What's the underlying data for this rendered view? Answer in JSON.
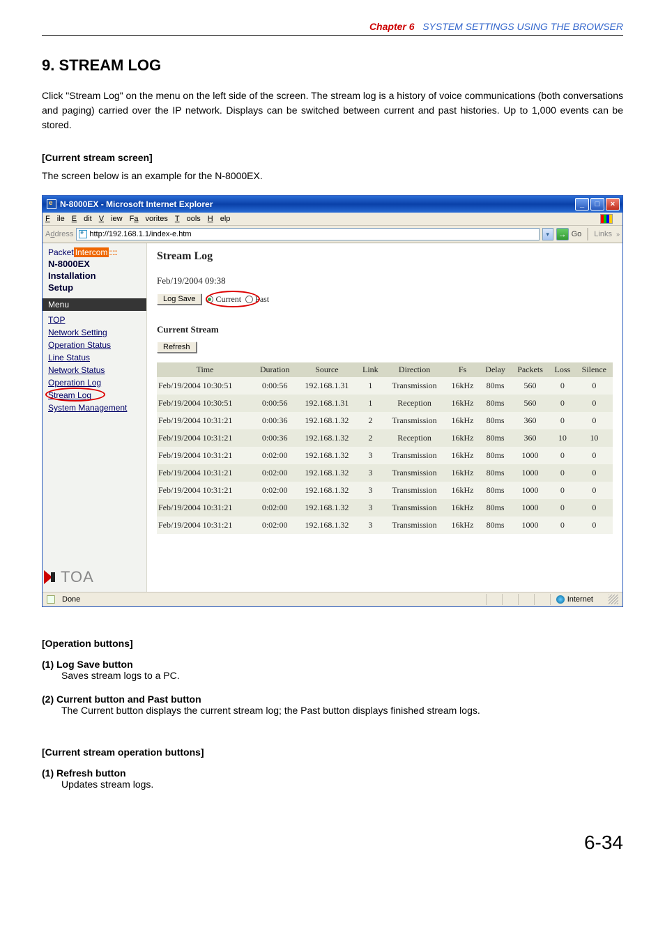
{
  "chapter": {
    "num": "Chapter 6",
    "title": "SYSTEM SETTINGS USING THE BROWSER"
  },
  "h1": "9. STREAM LOG",
  "intro": "Click \"Stream Log\" on the menu on the left side of the screen.\nThe stream log is a history of voice communications (both conversations and paging) carried over the IP network. Displays can be switched between current and past histories. Up to 1,000 events can be stored.",
  "current_screen_head": "[Current stream screen]",
  "example_line": "The screen below is an example for the N-8000EX.",
  "browser": {
    "title": "N-8000EX - Microsoft Internet Explorer",
    "menus": [
      "File",
      "Edit",
      "View",
      "Favorites",
      "Tools",
      "Help"
    ],
    "menu_underline_idx": [
      0,
      0,
      0,
      1,
      0,
      0
    ],
    "addr_label": "Address",
    "addr_value": "http://192.168.1.1/index-e.htm",
    "go_label": "Go",
    "links_label": "Links"
  },
  "sidebar": {
    "brand_p1": "Packet",
    "brand_p2": "Intercom",
    "head1": "N-8000EX",
    "head2": "Installation",
    "head3": "Setup",
    "menu_title": "Menu",
    "links": [
      "TOP",
      "Network Setting",
      "Operation Status",
      "Line Status",
      "Network Status",
      "Operation Log",
      "Stream Log",
      "System Management"
    ],
    "active_index": 6,
    "toa_text": "TOA"
  },
  "main": {
    "title": "Stream Log",
    "timestamp": "Feb/19/2004 09:38",
    "logsave_label": "Log Save",
    "radio_current": "Current",
    "radio_past": "Past",
    "section_head": "Current Stream",
    "refresh_label": "Refresh",
    "columns": [
      "Time",
      "Duration",
      "Source",
      "Link",
      "Direction",
      "Fs",
      "Delay",
      "Packets",
      "Loss",
      "Silence"
    ],
    "rows": [
      [
        "Feb/19/2004 10:30:51",
        "0:00:56",
        "192.168.1.31",
        "1",
        "Transmission",
        "16kHz",
        "80ms",
        "560",
        "0",
        "0"
      ],
      [
        "Feb/19/2004 10:30:51",
        "0:00:56",
        "192.168.1.31",
        "1",
        "Reception",
        "16kHz",
        "80ms",
        "560",
        "0",
        "0"
      ],
      [
        "Feb/19/2004 10:31:21",
        "0:00:36",
        "192.168.1.32",
        "2",
        "Transmission",
        "16kHz",
        "80ms",
        "360",
        "0",
        "0"
      ],
      [
        "Feb/19/2004 10:31:21",
        "0:00:36",
        "192.168.1.32",
        "2",
        "Reception",
        "16kHz",
        "80ms",
        "360",
        "10",
        "10"
      ],
      [
        "Feb/19/2004 10:31:21",
        "0:02:00",
        "192.168.1.32",
        "3",
        "Transmission",
        "16kHz",
        "80ms",
        "1000",
        "0",
        "0"
      ],
      [
        "Feb/19/2004 10:31:21",
        "0:02:00",
        "192.168.1.32",
        "3",
        "Transmission",
        "16kHz",
        "80ms",
        "1000",
        "0",
        "0"
      ],
      [
        "Feb/19/2004 10:31:21",
        "0:02:00",
        "192.168.1.32",
        "3",
        "Transmission",
        "16kHz",
        "80ms",
        "1000",
        "0",
        "0"
      ],
      [
        "Feb/19/2004 10:31:21",
        "0:02:00",
        "192.168.1.32",
        "3",
        "Transmission",
        "16kHz",
        "80ms",
        "1000",
        "0",
        "0"
      ],
      [
        "Feb/19/2004 10:31:21",
        "0:02:00",
        "192.168.1.32",
        "3",
        "Transmission",
        "16kHz",
        "80ms",
        "1000",
        "0",
        "0"
      ]
    ]
  },
  "statusbar": {
    "done": "Done",
    "zone": "Internet"
  },
  "op_buttons_head": "[Operation buttons]",
  "op_items": [
    {
      "num": "(1)",
      "title": "Log Save button",
      "body": "Saves stream logs to a PC."
    },
    {
      "num": "(2)",
      "title": "Current button and Past button",
      "body": "The Current button displays the current stream log; the Past button displays finished stream logs."
    }
  ],
  "cur_op_head": "[Current stream operation buttons]",
  "cur_op_items": [
    {
      "num": "(1)",
      "title": "Refresh button",
      "body": "Updates stream logs."
    }
  ],
  "page_number": "6-34",
  "colors": {
    "header_bg": "#d6d8c6",
    "row_even": "#f2f3eb",
    "row_odd": "#e8eadd"
  }
}
